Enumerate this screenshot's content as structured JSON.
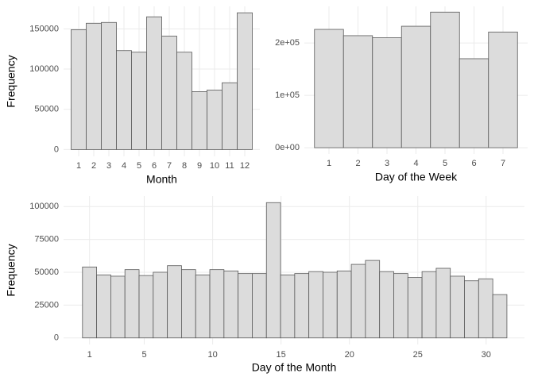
{
  "chart_data": [
    {
      "type": "bar",
      "x_label": "Month",
      "y_label": "Frequency",
      "categories": [
        "1",
        "2",
        "3",
        "4",
        "5",
        "6",
        "7",
        "8",
        "9",
        "10",
        "11",
        "12"
      ],
      "values": [
        149000,
        157000,
        158000,
        123000,
        121000,
        165000,
        141000,
        121000,
        72000,
        74000,
        83000,
        170000
      ],
      "color": "#dcdcdc",
      "ylim": [
        -8500,
        178000
      ],
      "yticks": [
        0,
        50000,
        100000,
        150000
      ],
      "grid": true
    },
    {
      "type": "bar",
      "x_label": "Day of the Week",
      "categories": [
        "1",
        "2",
        "3",
        "4",
        "5",
        "6",
        "7"
      ],
      "values": [
        226000,
        214000,
        210000,
        232000,
        259000,
        170000,
        221000
      ],
      "color": "#dcdcdc",
      "ylim": [
        -12000,
        270000
      ],
      "yticks": [
        {
          "value": 0,
          "label": "0e+00"
        },
        {
          "value": 100000,
          "label": "1e+05"
        },
        {
          "value": 200000,
          "label": "2e+05"
        }
      ],
      "grid": true
    },
    {
      "type": "histogram",
      "x_label": "Day of the Month",
      "y_label": "Frequency",
      "bins": [
        0.483,
        1.517,
        2.552,
        3.586,
        4.621,
        5.655,
        6.69,
        7.724,
        8.759,
        9.793,
        10.828,
        11.862,
        12.897,
        13.931,
        14.966,
        16.0,
        17.034,
        18.069,
        19.103,
        20.138,
        21.172,
        22.207,
        23.241,
        24.276,
        25.31,
        26.345,
        27.379,
        28.414,
        29.448,
        30.483,
        31.517
      ],
      "values": [
        54000,
        48000,
        47000,
        52000,
        47500,
        50000,
        55000,
        52000,
        48000,
        52000,
        51000,
        49000,
        49000,
        103000,
        48000,
        49000,
        50500,
        50000,
        51000,
        56000,
        59000,
        50500,
        49000,
        46000,
        50500,
        53000,
        47000,
        43500,
        45000,
        33000
      ],
      "color": "#dcdcdc",
      "xlim": [
        -0.9,
        32.8
      ],
      "xticks": [
        1,
        5,
        10,
        15,
        20,
        25,
        30
      ],
      "ylim": [
        -5000,
        108000
      ],
      "yticks": [
        0,
        25000,
        50000,
        75000,
        100000
      ],
      "grid": true
    }
  ]
}
